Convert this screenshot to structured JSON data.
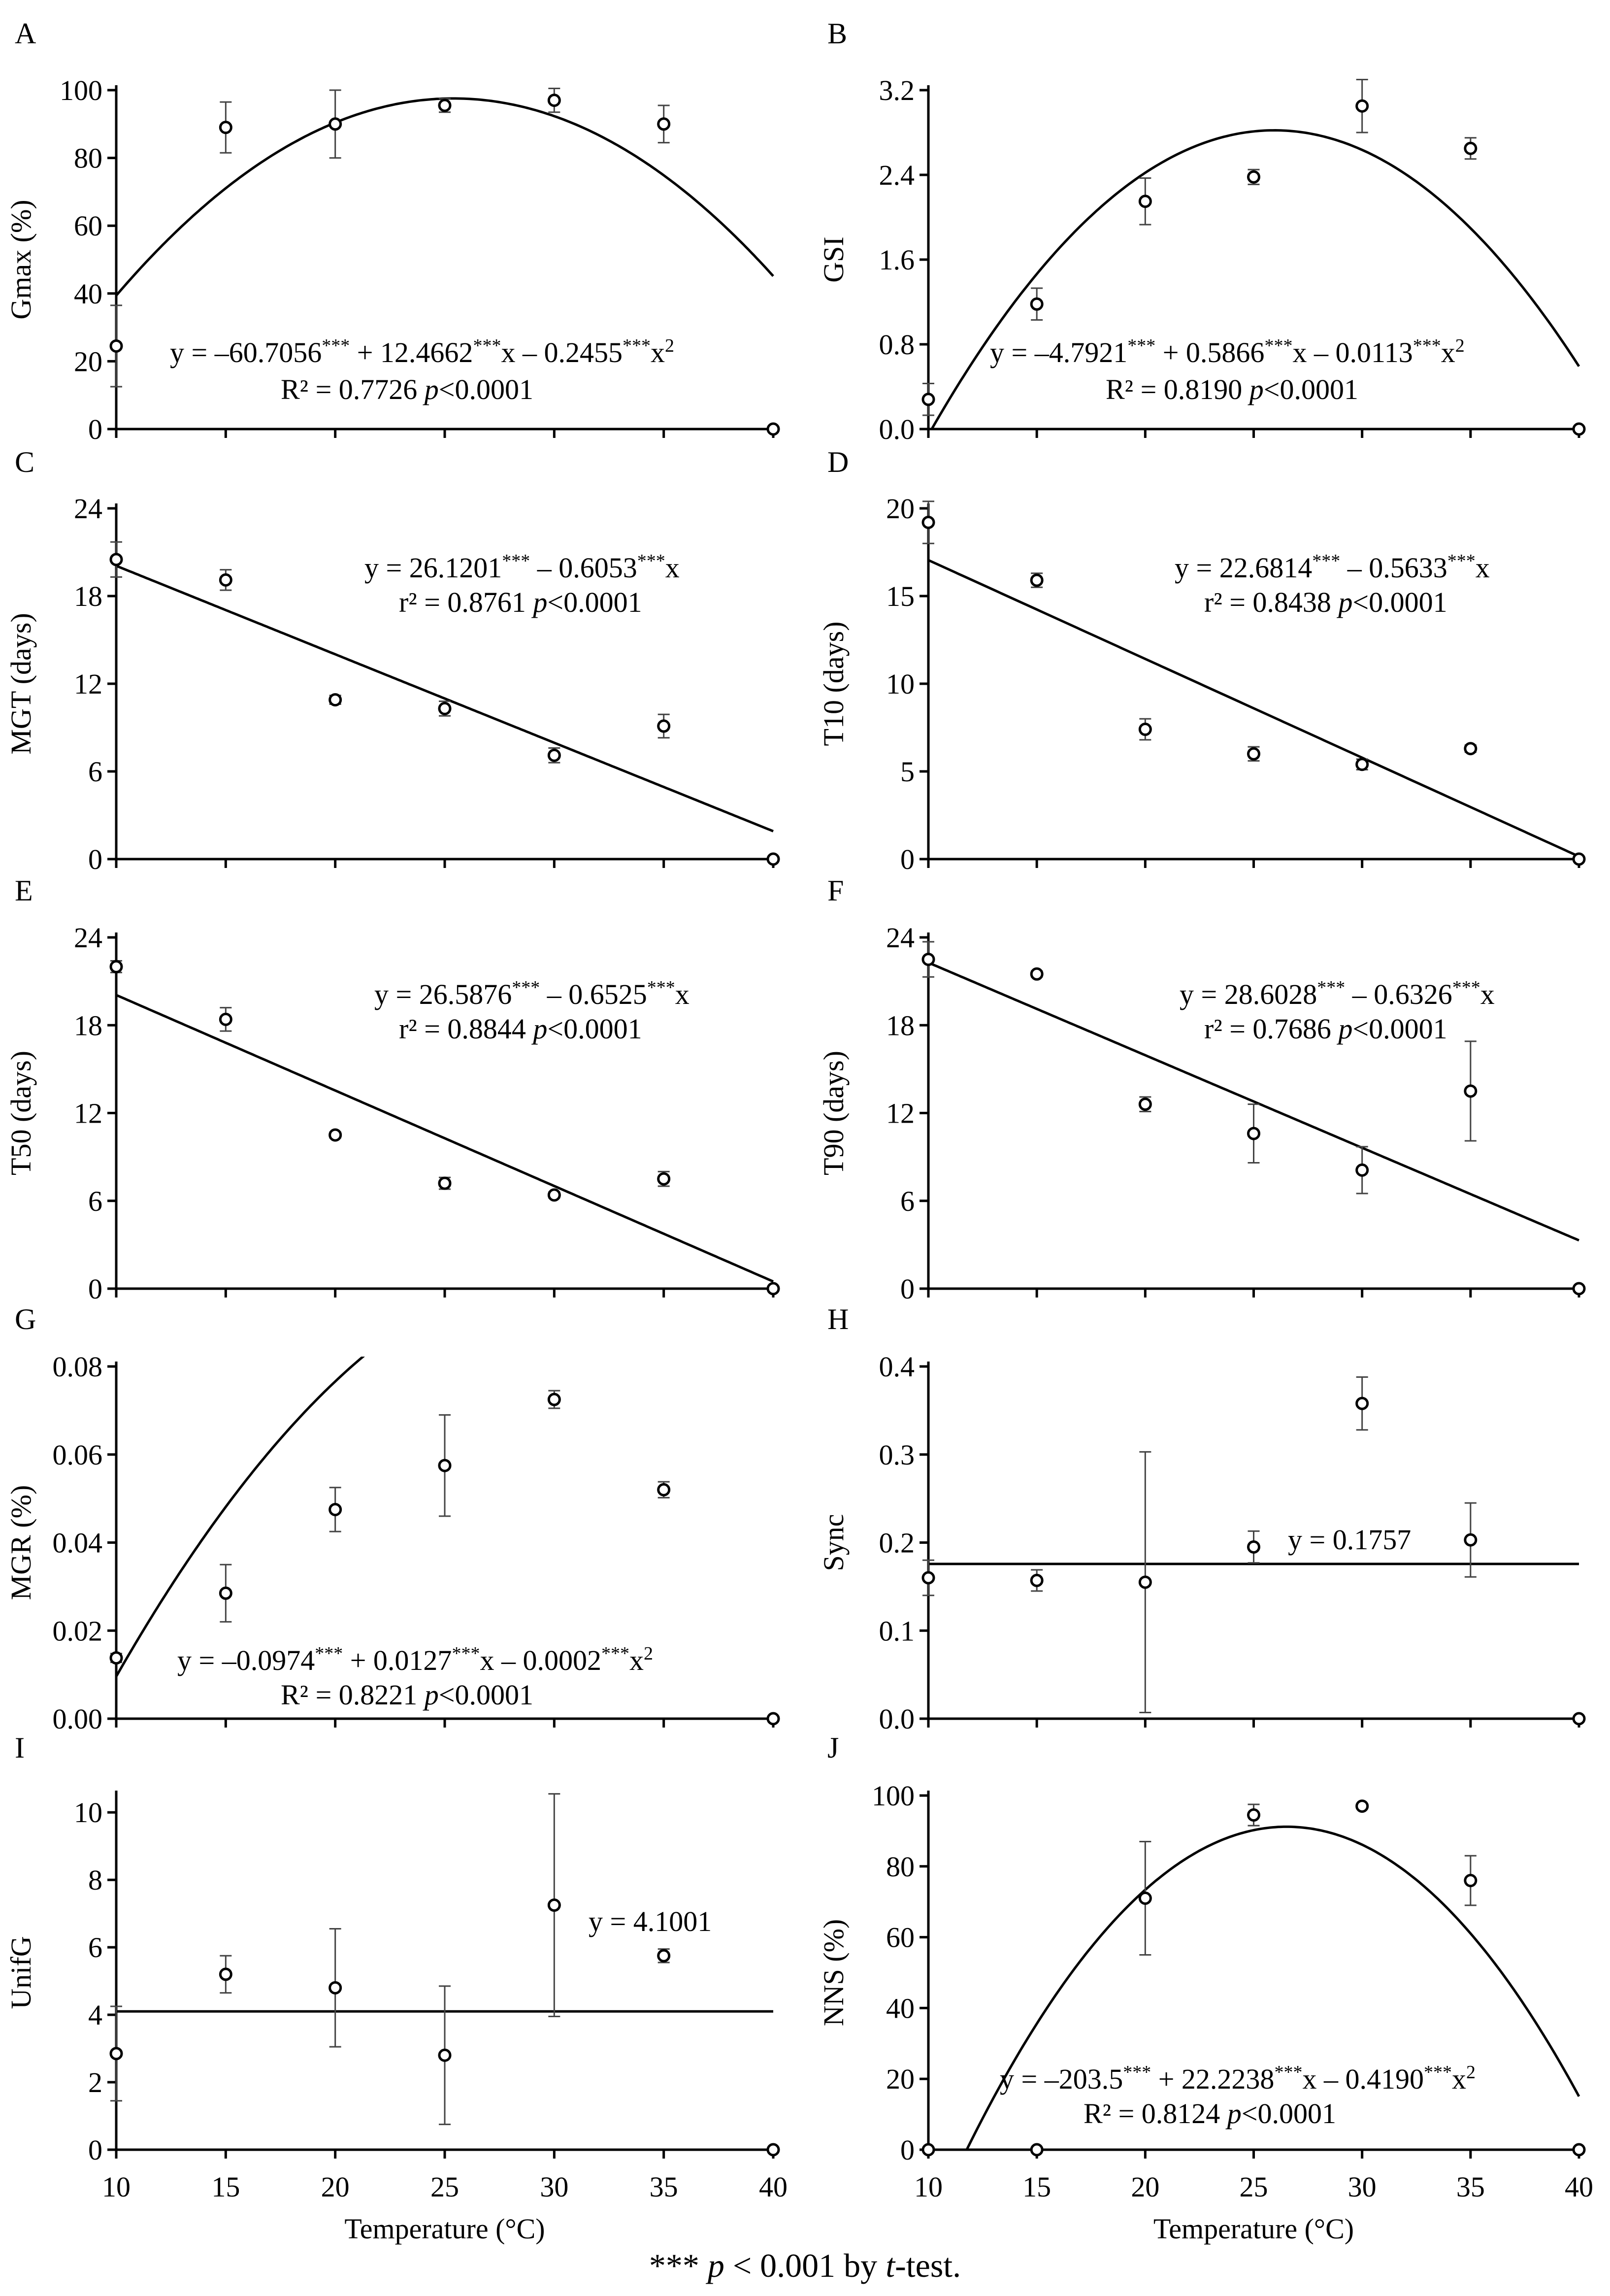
{
  "footnote": {
    "stars": "***",
    "p": "p",
    "rest": " < 0.001 by ",
    "t": "t",
    "tail": "-test."
  },
  "chart_data": [
    {
      "id": "A",
      "type": "scatter",
      "ylabel": "Gmax (%)",
      "xlabel": "",
      "ylim": [
        0,
        100
      ],
      "yticks": [
        "0",
        "20",
        "40",
        "60",
        "80",
        "100"
      ],
      "xticks": [],
      "points": [
        [
          10,
          24.5
        ],
        [
          15,
          89
        ],
        [
          20,
          90
        ],
        [
          25,
          95.5
        ],
        [
          30,
          97
        ],
        [
          35,
          90
        ],
        [
          40,
          0
        ]
      ],
      "errors": [
        12,
        7.5,
        10,
        2,
        3.5,
        5.5,
        0
      ],
      "fit": {
        "kind": "quad",
        "coef": [
          -60.7056,
          12.4662,
          -0.2455
        ]
      },
      "eq": [
        {
          "t": "y = –60.7056"
        },
        {
          "t": "***",
          "sup": true
        },
        {
          "t": " + 12.4662"
        },
        {
          "t": "***",
          "sup": true
        },
        {
          "t": "x – 0.2455"
        },
        {
          "t": "***",
          "sup": true
        },
        {
          "t": "x"
        },
        {
          "t": "2",
          "sup": true
        }
      ],
      "r2": [
        {
          "t": "R² = 0.7726      "
        },
        {
          "t": "p",
          "it": true
        },
        {
          "t": "<0.0001"
        }
      ]
    },
    {
      "id": "B",
      "type": "scatter",
      "ylabel": "GSI",
      "xlabel": "",
      "ylim": [
        0,
        3.2
      ],
      "yticks": [
        "0.0",
        "0.8",
        "1.6",
        "2.4",
        "3.2"
      ],
      "xticks": [],
      "points": [
        [
          10,
          0.28
        ],
        [
          15,
          1.18
        ],
        [
          20,
          2.15
        ],
        [
          25,
          2.38
        ],
        [
          30,
          3.05
        ],
        [
          35,
          2.65
        ],
        [
          40,
          0
        ]
      ],
      "errors": [
        0.15,
        0.15,
        0.22,
        0.07,
        0.25,
        0.1,
        0
      ],
      "fit": {
        "kind": "quad",
        "coef": [
          -4.7921,
          0.5866,
          -0.0113
        ]
      },
      "eq": [
        {
          "t": "y = –4.7921"
        },
        {
          "t": "***",
          "sup": true
        },
        {
          "t": " + 0.5866"
        },
        {
          "t": "***",
          "sup": true
        },
        {
          "t": "x – 0.0113"
        },
        {
          "t": "***",
          "sup": true
        },
        {
          "t": "x"
        },
        {
          "t": "2",
          "sup": true
        }
      ],
      "r2": [
        {
          "t": "R² = 0.8190      "
        },
        {
          "t": "p",
          "it": true
        },
        {
          "t": "<0.0001"
        }
      ]
    },
    {
      "id": "C",
      "type": "scatter",
      "ylabel": "MGT (days)",
      "xlabel": "",
      "ylim": [
        0,
        24
      ],
      "yticks": [
        "0",
        "6",
        "12",
        "18",
        "24"
      ],
      "xticks": [],
      "points": [
        [
          10,
          20.5
        ],
        [
          15,
          19.1
        ],
        [
          20,
          10.9
        ],
        [
          25,
          10.3
        ],
        [
          30,
          7.1
        ],
        [
          35,
          9.1
        ],
        [
          40,
          0
        ]
      ],
      "errors": [
        1.2,
        0.7,
        0.3,
        0.5,
        0.5,
        0.8,
        0
      ],
      "fit": {
        "kind": "lin",
        "coef": [
          26.1201,
          -0.6053
        ]
      },
      "eq": [
        {
          "t": "y = 26.1201"
        },
        {
          "t": "***",
          "sup": true
        },
        {
          "t": " – 0.6053"
        },
        {
          "t": "***",
          "sup": true
        },
        {
          "t": "x"
        }
      ],
      "r2": [
        {
          "t": "r² = 0.8761      "
        },
        {
          "t": "p",
          "it": true
        },
        {
          "t": "<0.0001"
        }
      ]
    },
    {
      "id": "D",
      "type": "scatter",
      "ylabel": "T10 (days)",
      "xlabel": "",
      "ylim": [
        0,
        20
      ],
      "yticks": [
        "0",
        "5",
        "10",
        "15",
        "20"
      ],
      "xticks": [],
      "points": [
        [
          10,
          19.2
        ],
        [
          15,
          15.9
        ],
        [
          20,
          7.4
        ],
        [
          25,
          6.0
        ],
        [
          30,
          5.4
        ],
        [
          35,
          6.3
        ],
        [
          40,
          0
        ]
      ],
      "errors": [
        1.2,
        0.4,
        0.6,
        0.4,
        0.3,
        0.2,
        0
      ],
      "fit": {
        "kind": "lin",
        "coef": [
          22.6814,
          -0.5633
        ]
      },
      "eq": [
        {
          "t": "y = 22.6814"
        },
        {
          "t": "***",
          "sup": true
        },
        {
          "t": " – 0.5633"
        },
        {
          "t": "***",
          "sup": true
        },
        {
          "t": "x"
        }
      ],
      "r2": [
        {
          "t": "r² = 0.8438      "
        },
        {
          "t": "p",
          "it": true
        },
        {
          "t": "<0.0001"
        }
      ]
    },
    {
      "id": "E",
      "type": "scatter",
      "ylabel": "T50 (days)",
      "xlabel": "",
      "ylim": [
        0,
        24
      ],
      "yticks": [
        "0",
        "6",
        "12",
        "18",
        "24"
      ],
      "xticks": [],
      "points": [
        [
          10,
          22
        ],
        [
          15,
          18.4
        ],
        [
          20,
          10.5
        ],
        [
          25,
          7.2
        ],
        [
          30,
          6.4
        ],
        [
          35,
          7.5
        ],
        [
          40,
          0
        ]
      ],
      "errors": [
        0.4,
        0.8,
        0.2,
        0.4,
        0.2,
        0.5,
        0
      ],
      "fit": {
        "kind": "lin",
        "coef": [
          26.5876,
          -0.6525
        ]
      },
      "eq": [
        {
          "t": "y = 26.5876"
        },
        {
          "t": "***",
          "sup": true
        },
        {
          "t": " – 0.6525"
        },
        {
          "t": "***",
          "sup": true
        },
        {
          "t": "x"
        }
      ],
      "r2": [
        {
          "t": "r² = 0.8844      "
        },
        {
          "t": "p",
          "it": true
        },
        {
          "t": "<0.0001"
        }
      ]
    },
    {
      "id": "F",
      "type": "scatter",
      "ylabel": "T90 (days)",
      "xlabel": "",
      "ylim": [
        0,
        24
      ],
      "yticks": [
        "0",
        "6",
        "12",
        "18",
        "24"
      ],
      "xticks": [],
      "points": [
        [
          10,
          22.5
        ],
        [
          15,
          21.5
        ],
        [
          20,
          12.6
        ],
        [
          25,
          10.6
        ],
        [
          30,
          8.1
        ],
        [
          35,
          13.5
        ],
        [
          40,
          0
        ]
      ],
      "errors": [
        1.2,
        0.2,
        0.5,
        2.0,
        1.6,
        3.4,
        0
      ],
      "fit": {
        "kind": "lin",
        "coef": [
          28.6028,
          -0.6326
        ]
      },
      "eq": [
        {
          "t": "y = 28.6028"
        },
        {
          "t": "***",
          "sup": true
        },
        {
          "t": " – 0.6326"
        },
        {
          "t": "***",
          "sup": true
        },
        {
          "t": "x"
        }
      ],
      "r2": [
        {
          "t": "r² = 0.7686      "
        },
        {
          "t": "p",
          "it": true
        },
        {
          "t": "<0.0001"
        }
      ]
    },
    {
      "id": "G",
      "type": "scatter",
      "ylabel": "MGR (%)",
      "xlabel": "",
      "ylim": [
        0,
        0.08
      ],
      "yticks": [
        "0.00",
        "0.02",
        "0.04",
        "0.06",
        "0.08"
      ],
      "xticks": [],
      "points": [
        [
          10,
          0.0138
        ],
        [
          15,
          0.0285
        ],
        [
          20,
          0.0475
        ],
        [
          25,
          0.0575
        ],
        [
          30,
          0.0725
        ],
        [
          35,
          0.052
        ],
        [
          40,
          0
        ]
      ],
      "errors": [
        0.001,
        0.0065,
        0.005,
        0.0115,
        0.002,
        0.0018,
        0
      ],
      "fit": {
        "kind": "quad",
        "coef": [
          -0.0974,
          0.0127,
          -0.0002
        ]
      },
      "eq": [
        {
          "t": "y = –0.0974"
        },
        {
          "t": "***",
          "sup": true
        },
        {
          "t": " + 0.0127"
        },
        {
          "t": "***",
          "sup": true
        },
        {
          "t": "x – 0.0002"
        },
        {
          "t": "***",
          "sup": true
        },
        {
          "t": "x"
        },
        {
          "t": "2",
          "sup": true
        }
      ],
      "r2": [
        {
          "t": "R² = 0.8221      "
        },
        {
          "t": "p",
          "it": true
        },
        {
          "t": "<0.0001"
        }
      ]
    },
    {
      "id": "H",
      "type": "scatter",
      "ylabel": "Sync",
      "xlabel": "",
      "ylim": [
        0,
        0.4
      ],
      "yticks": [
        "0.0",
        "0.1",
        "0.2",
        "0.3",
        "0.4"
      ],
      "xticks": [],
      "points": [
        [
          10,
          0.16
        ],
        [
          15,
          0.157
        ],
        [
          20,
          0.155
        ],
        [
          25,
          0.195
        ],
        [
          30,
          0.358
        ],
        [
          35,
          0.203
        ],
        [
          40,
          0
        ]
      ],
      "errors": [
        0.02,
        0.012,
        0.148,
        0.018,
        0.03,
        0.042,
        0
      ],
      "fit": {
        "kind": "const",
        "coef": [
          0.1757
        ]
      },
      "eq": [
        {
          "t": "y = 0.1757"
        }
      ],
      "r2": []
    },
    {
      "id": "I",
      "type": "scatter",
      "ylabel": "UnifG",
      "xlabel": "Temperature (°C)",
      "ylim": [
        0,
        10.5
      ],
      "yticks": [
        "0",
        "2",
        "4",
        "6",
        "8",
        "10"
      ],
      "xticks": [
        "10",
        "15",
        "20",
        "25",
        "30",
        "35",
        "40"
      ],
      "points": [
        [
          10,
          2.85
        ],
        [
          15,
          5.2
        ],
        [
          20,
          4.8
        ],
        [
          25,
          2.8
        ],
        [
          30,
          7.25
        ],
        [
          35,
          5.75
        ],
        [
          40,
          0
        ]
      ],
      "errors": [
        1.4,
        0.55,
        1.75,
        2.05,
        3.3,
        0.2,
        0
      ],
      "fit": {
        "kind": "const",
        "coef": [
          4.1001
        ]
      },
      "eq": [
        {
          "t": "y = 4.1001"
        }
      ],
      "r2": []
    },
    {
      "id": "J",
      "type": "scatter",
      "ylabel": "NNS (%)",
      "xlabel": "Temperature (°C)",
      "ylim": [
        0,
        100
      ],
      "yticks": [
        "0",
        "20",
        "40",
        "60",
        "80",
        "100"
      ],
      "xticks": [
        "10",
        "15",
        "20",
        "25",
        "30",
        "35",
        "40"
      ],
      "points": [
        [
          10,
          0
        ],
        [
          15,
          0
        ],
        [
          20,
          71
        ],
        [
          25,
          94.5
        ],
        [
          30,
          97
        ],
        [
          35,
          76
        ],
        [
          40,
          0
        ]
      ],
      "errors": [
        0,
        0,
        16,
        3,
        0,
        7,
        0
      ],
      "fit": {
        "kind": "quad",
        "coef": [
          -203.5,
          22.2238,
          -0.419
        ]
      },
      "eq": [
        {
          "t": "y = –203.5"
        },
        {
          "t": "***",
          "sup": true
        },
        {
          "t": " + 22.2238"
        },
        {
          "t": "***",
          "sup": true
        },
        {
          "t": "x – 0.4190"
        },
        {
          "t": "***",
          "sup": true
        },
        {
          "t": "x"
        },
        {
          "t": "2",
          "sup": true
        }
      ],
      "r2": [
        {
          "t": "R² = 0.8124      "
        },
        {
          "t": "p",
          "it": true
        },
        {
          "t": "<0.0001"
        }
      ]
    }
  ]
}
